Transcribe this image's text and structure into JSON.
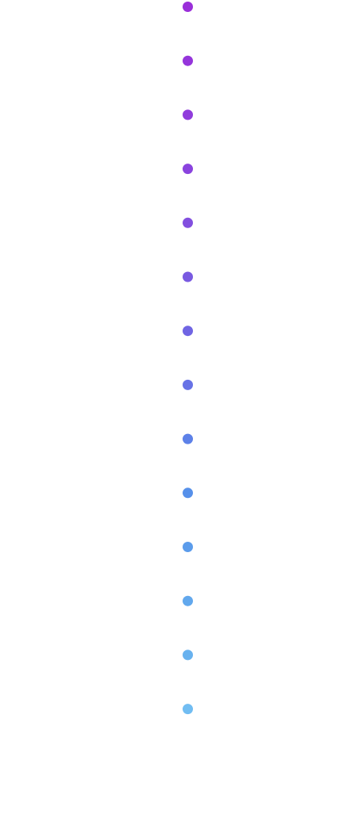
{
  "dots": [
    {
      "color": "#9a2fd9"
    },
    {
      "color": "#9535db"
    },
    {
      "color": "#903cdc"
    },
    {
      "color": "#8a43de"
    },
    {
      "color": "#824fdf"
    },
    {
      "color": "#795ae1"
    },
    {
      "color": "#7065e3"
    },
    {
      "color": "#6772e6"
    },
    {
      "color": "#5d81e8"
    },
    {
      "color": "#5690ea"
    },
    {
      "color": "#5b9ceb"
    },
    {
      "color": "#62a8ed"
    },
    {
      "color": "#68b2ef"
    },
    {
      "color": "#71bdf2"
    }
  ]
}
